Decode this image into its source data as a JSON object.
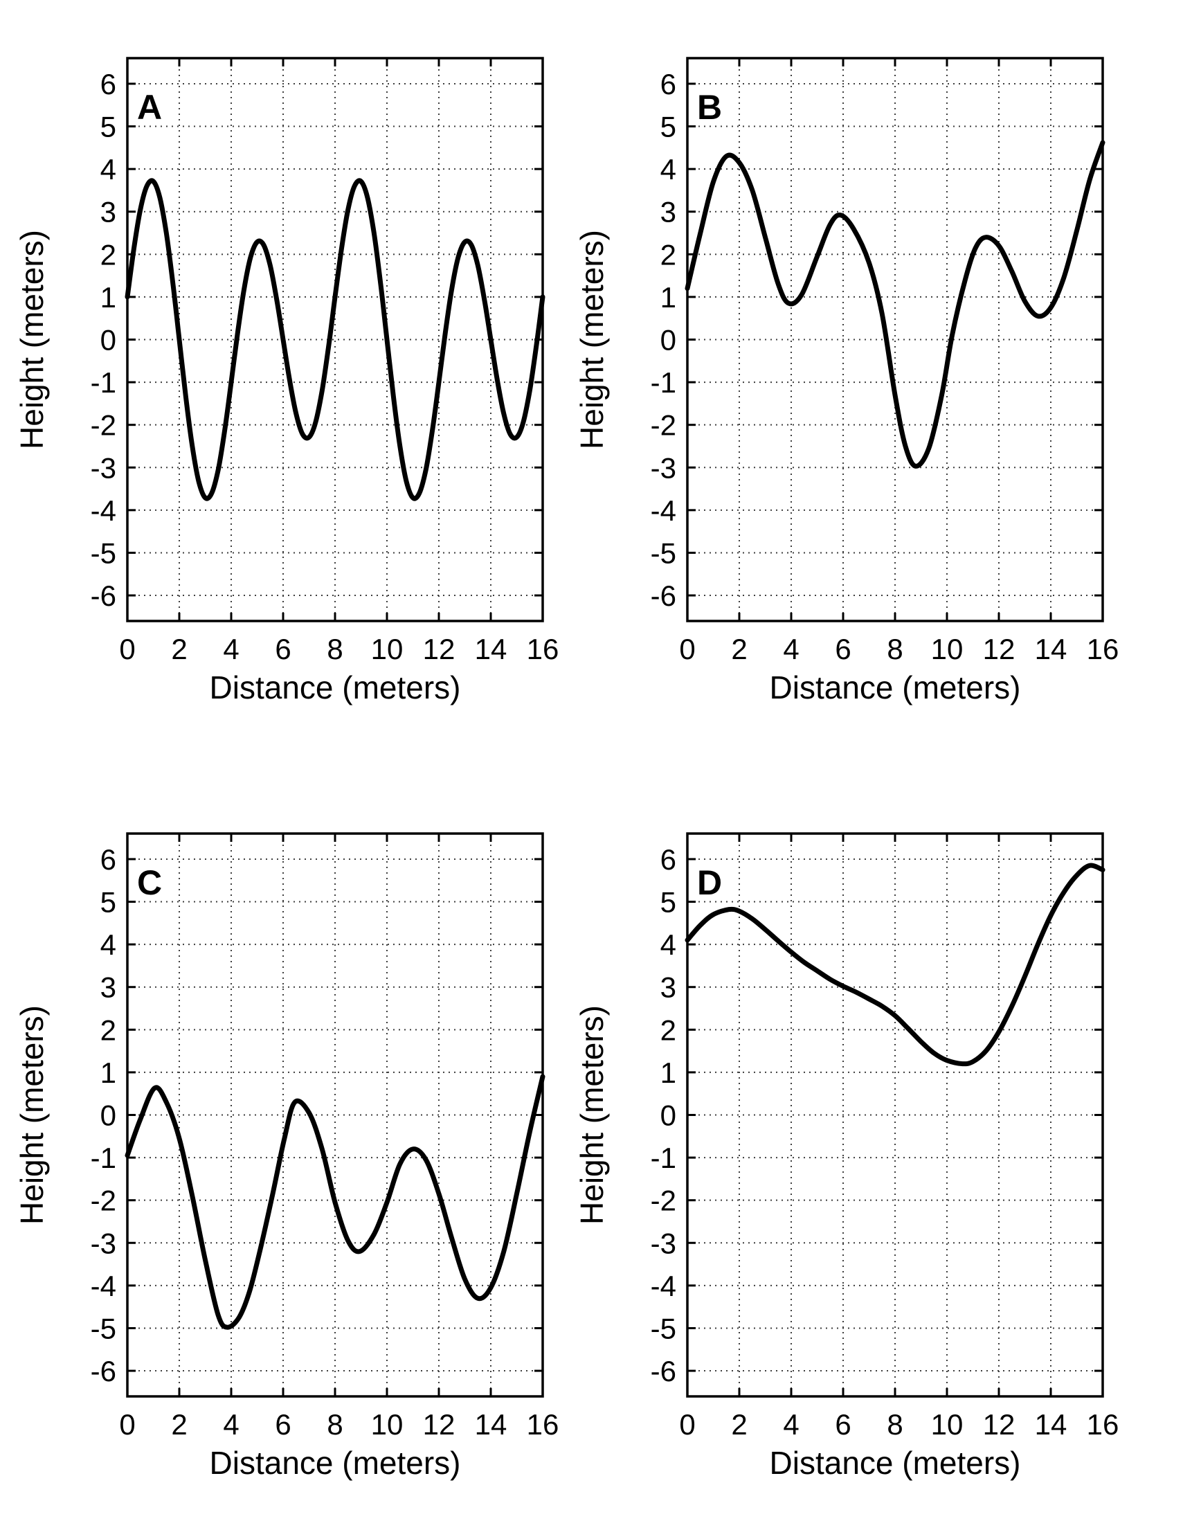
{
  "figure": {
    "xlabel": "Distance (meters)",
    "ylabel": "Height (meters)",
    "xticks": [
      0,
      2,
      4,
      6,
      8,
      10,
      12,
      14,
      16
    ],
    "yticks": [
      6,
      5,
      4,
      3,
      2,
      1,
      0,
      -1,
      -2,
      -3,
      -4,
      -5,
      -6
    ],
    "xlim": [
      0,
      16
    ],
    "ylim": [
      -6.6,
      6.6
    ],
    "grid": "dotted",
    "colors": {
      "background": "#ffffff",
      "curve": "#000000",
      "axis": "#000000",
      "grid_dots": "#3d3d3d",
      "text": "#000000"
    }
  },
  "chart_data": [
    {
      "type": "line",
      "label": "A",
      "xlabel": "Distance (meters)",
      "ylabel": "Height (meters)",
      "xlim": [
        0,
        16
      ],
      "ylim": [
        -6.6,
        6.6
      ],
      "points": [
        [
          0,
          1.0
        ],
        [
          0.25,
          2.13
        ],
        [
          0.5,
          3.05
        ],
        [
          0.75,
          3.6
        ],
        [
          1,
          3.71
        ],
        [
          1.25,
          3.33
        ],
        [
          1.5,
          2.5
        ],
        [
          1.75,
          1.34
        ],
        [
          2,
          0.0
        ],
        [
          2.25,
          -1.34
        ],
        [
          2.5,
          -2.5
        ],
        [
          2.75,
          -3.33
        ],
        [
          3,
          -3.71
        ],
        [
          3.25,
          -3.6
        ],
        [
          3.5,
          -3.05
        ],
        [
          3.75,
          -2.13
        ],
        [
          4,
          -1.0
        ],
        [
          4.25,
          0.17
        ],
        [
          4.5,
          1.2
        ],
        [
          4.75,
          1.94
        ],
        [
          5,
          2.29
        ],
        [
          5.25,
          2.22
        ],
        [
          5.5,
          1.74
        ],
        [
          5.75,
          0.95
        ],
        [
          6,
          0.0
        ],
        [
          6.25,
          -0.95
        ],
        [
          6.5,
          -1.74
        ],
        [
          6.75,
          -2.22
        ],
        [
          7,
          -2.29
        ],
        [
          7.25,
          -1.94
        ],
        [
          7.5,
          -1.2
        ],
        [
          7.75,
          -0.17
        ],
        [
          8,
          1.0
        ],
        [
          8.25,
          2.13
        ],
        [
          8.5,
          3.05
        ],
        [
          8.75,
          3.6
        ],
        [
          9,
          3.71
        ],
        [
          9.25,
          3.33
        ],
        [
          9.5,
          2.5
        ],
        [
          9.75,
          1.34
        ],
        [
          10,
          0.0
        ],
        [
          10.25,
          -1.34
        ],
        [
          10.5,
          -2.5
        ],
        [
          10.75,
          -3.33
        ],
        [
          11,
          -3.71
        ],
        [
          11.25,
          -3.6
        ],
        [
          11.5,
          -3.05
        ],
        [
          11.75,
          -2.13
        ],
        [
          12,
          -1.0
        ],
        [
          12.25,
          0.17
        ],
        [
          12.5,
          1.2
        ],
        [
          12.75,
          1.94
        ],
        [
          13,
          2.29
        ],
        [
          13.25,
          2.22
        ],
        [
          13.5,
          1.74
        ],
        [
          13.75,
          0.95
        ],
        [
          14,
          0.0
        ],
        [
          14.25,
          -0.95
        ],
        [
          14.5,
          -1.74
        ],
        [
          14.75,
          -2.22
        ],
        [
          15,
          -2.29
        ],
        [
          15.25,
          -1.94
        ],
        [
          15.5,
          -1.2
        ],
        [
          15.75,
          -0.17
        ],
        [
          16,
          1.0
        ]
      ]
    },
    {
      "type": "line",
      "label": "B",
      "xlabel": "Distance (meters)",
      "ylabel": "Height (meters)",
      "xlim": [
        0,
        16
      ],
      "ylim": [
        -6.6,
        6.6
      ],
      "points": [
        [
          0,
          1.2
        ],
        [
          0.5,
          2.5
        ],
        [
          1,
          3.7
        ],
        [
          1.5,
          4.3
        ],
        [
          2,
          4.15
        ],
        [
          2.5,
          3.5
        ],
        [
          3,
          2.4
        ],
        [
          3.5,
          1.3
        ],
        [
          3.9,
          0.85
        ],
        [
          4.4,
          1.05
        ],
        [
          5,
          1.95
        ],
        [
          5.5,
          2.7
        ],
        [
          5.9,
          2.92
        ],
        [
          6.4,
          2.6
        ],
        [
          7,
          1.8
        ],
        [
          7.5,
          0.6
        ],
        [
          8,
          -1.3
        ],
        [
          8.4,
          -2.5
        ],
        [
          8.8,
          -2.97
        ],
        [
          9.3,
          -2.55
        ],
        [
          9.8,
          -1.3
        ],
        [
          10.2,
          0.1
        ],
        [
          10.7,
          1.4
        ],
        [
          11.1,
          2.15
        ],
        [
          11.5,
          2.4
        ],
        [
          12,
          2.2
        ],
        [
          12.5,
          1.6
        ],
        [
          13,
          0.9
        ],
        [
          13.5,
          0.55
        ],
        [
          14,
          0.75
        ],
        [
          14.5,
          1.45
        ],
        [
          15,
          2.55
        ],
        [
          15.5,
          3.75
        ],
        [
          16,
          4.62
        ]
      ]
    },
    {
      "type": "line",
      "label": "C",
      "xlabel": "Distance (meters)",
      "ylabel": "Height (meters)",
      "xlim": [
        0,
        16
      ],
      "ylim": [
        -6.6,
        6.6
      ],
      "points": [
        [
          0,
          -0.95
        ],
        [
          0.5,
          -0.1
        ],
        [
          1.05,
          0.63
        ],
        [
          1.5,
          0.3
        ],
        [
          2,
          -0.55
        ],
        [
          2.5,
          -1.9
        ],
        [
          3,
          -3.4
        ],
        [
          3.5,
          -4.7
        ],
        [
          3.85,
          -4.98
        ],
        [
          4.3,
          -4.75
        ],
        [
          4.7,
          -4.15
        ],
        [
          5.1,
          -3.2
        ],
        [
          5.6,
          -1.85
        ],
        [
          6.05,
          -0.55
        ],
        [
          6.45,
          0.3
        ],
        [
          7,
          0.05
        ],
        [
          7.5,
          -0.8
        ],
        [
          8,
          -2.05
        ],
        [
          8.5,
          -2.95
        ],
        [
          8.95,
          -3.2
        ],
        [
          9.5,
          -2.8
        ],
        [
          10,
          -2.05
        ],
        [
          10.5,
          -1.15
        ],
        [
          11,
          -0.8
        ],
        [
          11.5,
          -1.05
        ],
        [
          12,
          -1.85
        ],
        [
          12.5,
          -2.9
        ],
        [
          13,
          -3.85
        ],
        [
          13.5,
          -4.3
        ],
        [
          14,
          -4.05
        ],
        [
          14.5,
          -3.2
        ],
        [
          15,
          -1.85
        ],
        [
          15.5,
          -0.4
        ],
        [
          16,
          0.9
        ]
      ]
    },
    {
      "type": "line",
      "label": "D",
      "xlabel": "Distance (meters)",
      "ylabel": "Height (meters)",
      "xlim": [
        0,
        16
      ],
      "ylim": [
        -6.6,
        6.6
      ],
      "points": [
        [
          0,
          4.1
        ],
        [
          0.5,
          4.45
        ],
        [
          1,
          4.7
        ],
        [
          1.6,
          4.82
        ],
        [
          2,
          4.78
        ],
        [
          2.5,
          4.6
        ],
        [
          3,
          4.35
        ],
        [
          3.5,
          4.08
        ],
        [
          4,
          3.82
        ],
        [
          4.5,
          3.58
        ],
        [
          5,
          3.38
        ],
        [
          5.5,
          3.18
        ],
        [
          6,
          3.02
        ],
        [
          6.5,
          2.88
        ],
        [
          7,
          2.72
        ],
        [
          7.5,
          2.55
        ],
        [
          8,
          2.33
        ],
        [
          8.5,
          2.03
        ],
        [
          9,
          1.72
        ],
        [
          9.5,
          1.45
        ],
        [
          10,
          1.28
        ],
        [
          10.6,
          1.2
        ],
        [
          11,
          1.25
        ],
        [
          11.5,
          1.5
        ],
        [
          12,
          1.95
        ],
        [
          12.5,
          2.55
        ],
        [
          13,
          3.25
        ],
        [
          13.5,
          4.0
        ],
        [
          14,
          4.68
        ],
        [
          14.5,
          5.22
        ],
        [
          15,
          5.62
        ],
        [
          15.5,
          5.85
        ],
        [
          16,
          5.75
        ]
      ]
    }
  ]
}
